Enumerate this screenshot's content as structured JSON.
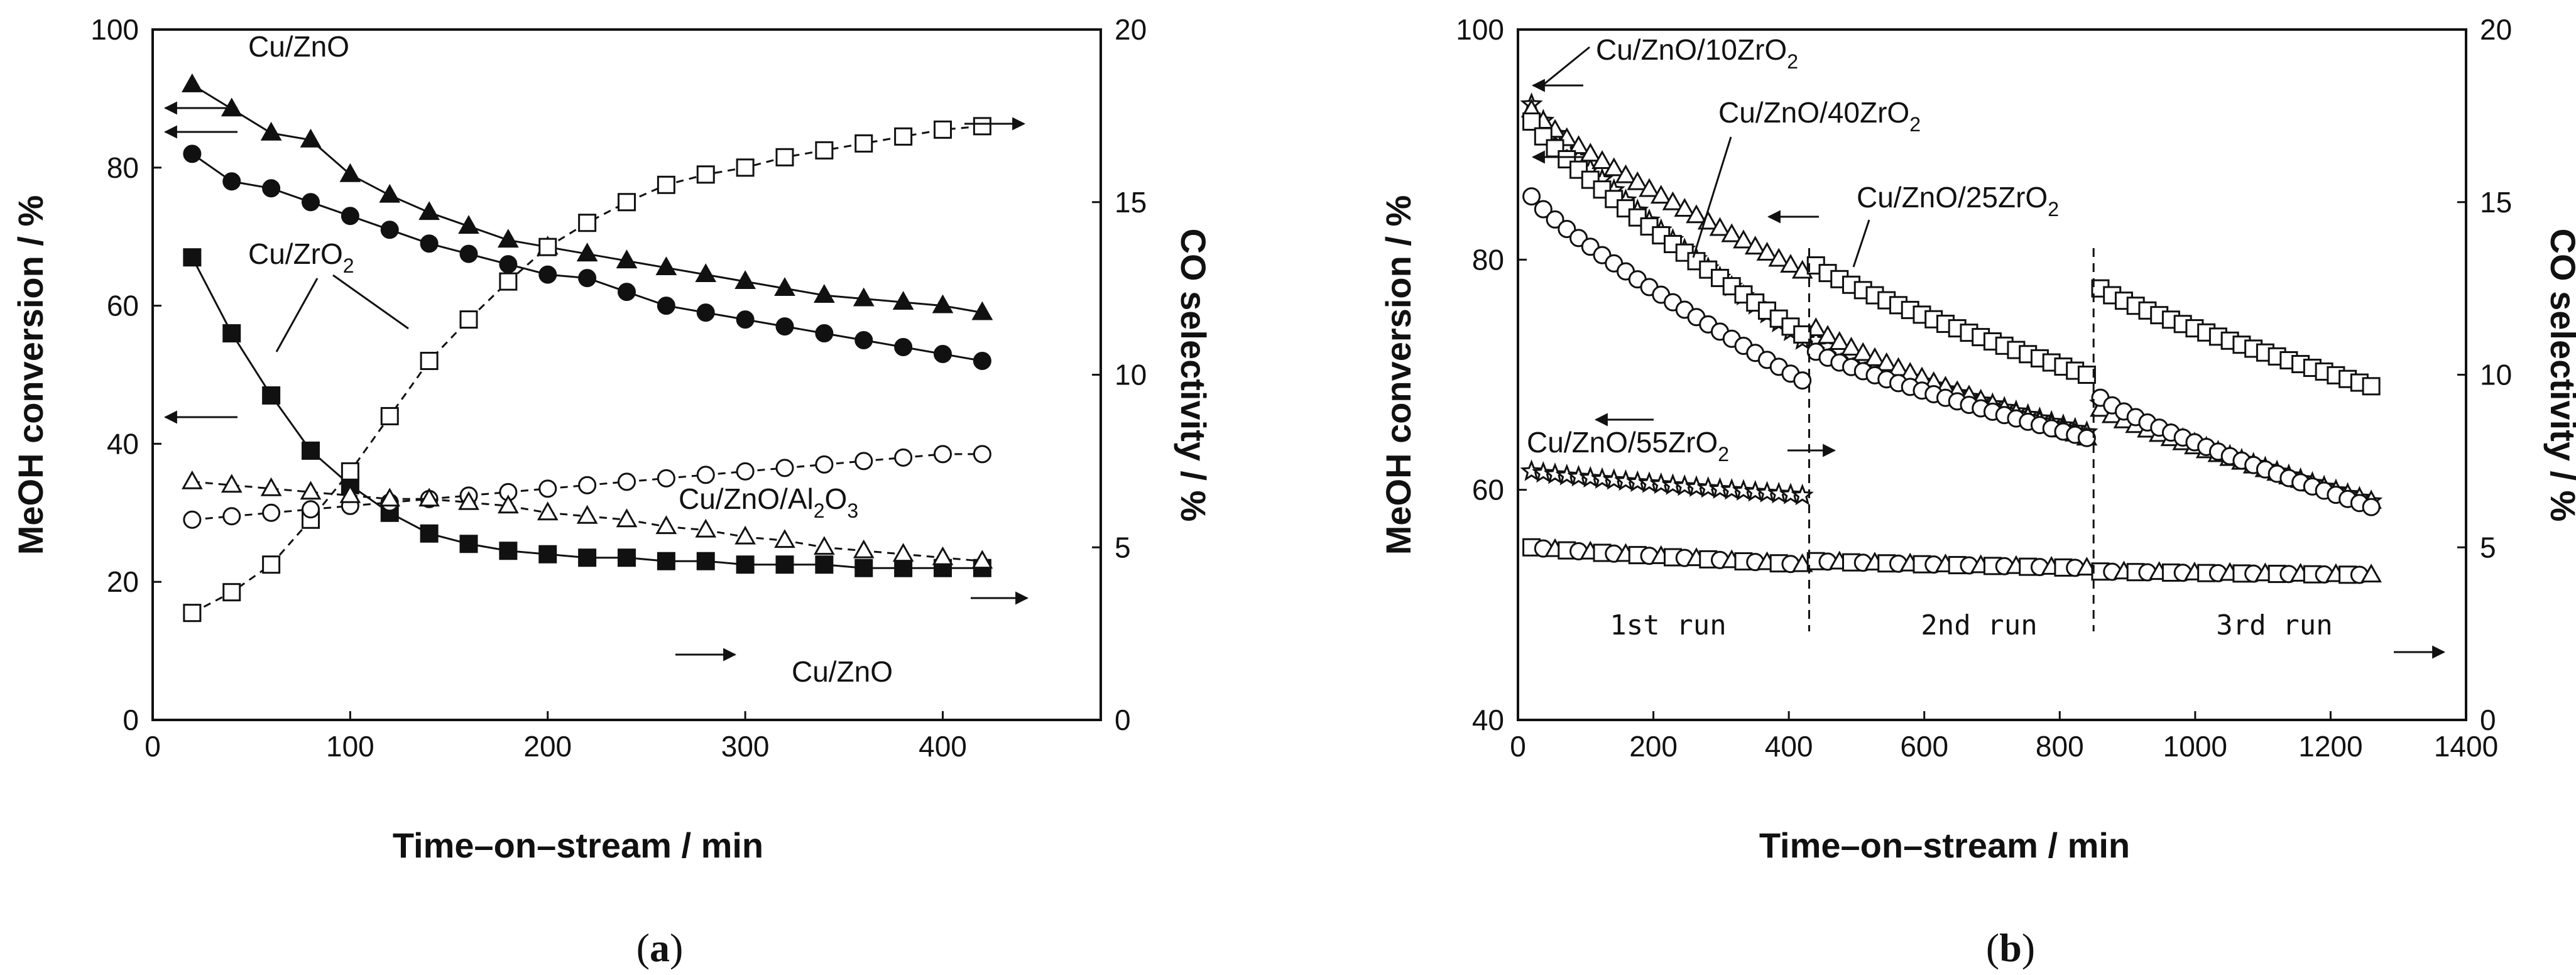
{
  "chart_data": [
    {
      "panel": "a",
      "type": "line",
      "caption_open": "(",
      "caption_letter": "a",
      "caption_close": ")",
      "xlabel": "Time–on–stream  /  min",
      "ylabel": "MeOH conversion  /  %",
      "y2label": "CO selectivity  /  %",
      "xlim": [
        0,
        480
      ],
      "ylim": [
        0,
        100
      ],
      "y2lim": [
        0,
        20
      ],
      "xticks": [
        0,
        100,
        200,
        300,
        400
      ],
      "yticks": [
        0,
        20,
        40,
        60,
        80,
        100
      ],
      "y2ticks": [
        0,
        5,
        10,
        15,
        20
      ],
      "series": [
        {
          "name": "Cu/ZnO MeOH conversion",
          "axis": "left",
          "marker": "triangle-filled",
          "line": "solid",
          "x": [
            20,
            40,
            60,
            80,
            100,
            120,
            140,
            160,
            180,
            200,
            220,
            240,
            260,
            280,
            300,
            320,
            340,
            360,
            380,
            400,
            420
          ],
          "y": [
            92,
            88.5,
            85,
            84,
            79,
            76,
            73.5,
            71.5,
            69.5,
            68.5,
            67.5,
            66.5,
            65.5,
            64.5,
            63.5,
            62.5,
            61.5,
            61,
            60.5,
            60,
            59
          ]
        },
        {
          "name": "Cu/ZnO/Al2O3 MeOH conversion",
          "axis": "left",
          "marker": "circle-filled",
          "line": "solid",
          "x": [
            20,
            40,
            60,
            80,
            100,
            120,
            140,
            160,
            180,
            200,
            220,
            240,
            260,
            280,
            300,
            320,
            340,
            360,
            380,
            400,
            420
          ],
          "y": [
            82,
            78,
            77,
            75,
            73,
            71,
            69,
            67.5,
            66,
            64.5,
            64,
            62,
            60,
            59,
            58,
            57,
            56,
            55,
            54,
            53,
            52
          ]
        },
        {
          "name": "Cu/ZrO2 MeOH conversion",
          "axis": "left",
          "marker": "square-filled",
          "line": "solid",
          "x": [
            20,
            40,
            60,
            80,
            100,
            120,
            140,
            160,
            180,
            200,
            220,
            240,
            260,
            280,
            300,
            320,
            340,
            360,
            380,
            400,
            420
          ],
          "y": [
            67,
            56,
            47,
            39,
            34,
            30,
            27,
            25.5,
            24.5,
            24,
            23.5,
            23.5,
            23,
            23,
            22.5,
            22.5,
            22.5,
            22,
            22,
            22,
            22
          ]
        },
        {
          "name": "Cu/ZrO2 CO selectivity",
          "axis": "right",
          "marker": "square-open",
          "line": "dashed",
          "x": [
            20,
            40,
            60,
            80,
            100,
            120,
            140,
            160,
            180,
            200,
            220,
            240,
            260,
            280,
            300,
            320,
            340,
            360,
            380,
            400,
            420
          ],
          "y": [
            3.1,
            3.7,
            4.5,
            5.8,
            7.2,
            8.8,
            10.4,
            11.6,
            12.7,
            13.7,
            14.4,
            15.0,
            15.5,
            15.8,
            16.0,
            16.3,
            16.5,
            16.7,
            16.9,
            17.1,
            17.2
          ]
        },
        {
          "name": "Cu/ZnO/Al2O3 CO selectivity",
          "axis": "right",
          "marker": "circle-open",
          "line": "dashed",
          "x": [
            20,
            40,
            60,
            80,
            100,
            120,
            140,
            160,
            180,
            200,
            220,
            240,
            260,
            280,
            300,
            320,
            340,
            360,
            380,
            400,
            420
          ],
          "y": [
            5.8,
            5.9,
            6.0,
            6.1,
            6.2,
            6.3,
            6.4,
            6.5,
            6.6,
            6.7,
            6.8,
            6.9,
            7.0,
            7.1,
            7.2,
            7.3,
            7.4,
            7.5,
            7.6,
            7.7,
            7.7
          ]
        },
        {
          "name": "Cu/ZnO CO selectivity",
          "axis": "right",
          "marker": "triangle-open",
          "line": "dashed",
          "x": [
            20,
            40,
            60,
            80,
            100,
            120,
            140,
            160,
            180,
            200,
            220,
            240,
            260,
            280,
            300,
            320,
            340,
            360,
            380,
            400,
            420
          ],
          "y": [
            6.9,
            6.8,
            6.7,
            6.6,
            6.5,
            6.4,
            6.4,
            6.3,
            6.2,
            6.0,
            5.9,
            5.8,
            5.6,
            5.5,
            5.3,
            5.2,
            5.0,
            4.9,
            4.8,
            4.7,
            4.6
          ]
        }
      ],
      "annotations": [
        {
          "label": "Cu/ZnO"
        },
        {
          "label": "Cu/ZrO",
          "sub": "2"
        },
        {
          "label": "Cu/ZnO/Al",
          "sub": "2",
          "mid": "O",
          "sub2": "3"
        },
        {
          "label": "Cu/ZnO"
        }
      ]
    },
    {
      "panel": "b",
      "type": "scatter",
      "caption_open": "(",
      "caption_letter": "b",
      "caption_close": ")",
      "xlabel": "Time–on–stream  /  min",
      "ylabel": "MeOH conversion  /  %",
      "y2label": "CO selectivity  /  %",
      "xlim": [
        0,
        1400
      ],
      "ylim": [
        40,
        100
      ],
      "y2lim": [
        0,
        20
      ],
      "xticks": [
        0,
        200,
        400,
        600,
        800,
        1000,
        1200,
        1400
      ],
      "yticks": [
        40,
        60,
        80,
        100
      ],
      "y2ticks": [
        0,
        5,
        10,
        15,
        20
      ],
      "run_boundaries": [
        430,
        850
      ],
      "run_labels": [
        "1st run",
        "2nd run",
        "3rd run"
      ],
      "series": [
        {
          "name": "Cu/ZnO/10ZrO2 MeOH conversion",
          "axis": "left",
          "marker": "star-open",
          "segments": [
            {
              "x0": 20,
              "x1": 420,
              "y0": 93.5,
              "y1": 73.0
            },
            {
              "x0": 440,
              "x1": 840,
              "y0": 73.0,
              "y1": 65.0
            },
            {
              "x0": 860,
              "x1": 1260,
              "y0": 67.5,
              "y1": 59.0
            }
          ]
        },
        {
          "name": "Cu/ZnO/40ZrO2 MeOH conversion",
          "axis": "left",
          "marker": "triangle-open",
          "segments": [
            {
              "x0": 20,
              "x1": 420,
              "y0": 93.0,
              "y1": 79.0
            },
            {
              "x0": 440,
              "x1": 840,
              "y0": 74.0,
              "y1": 64.5
            },
            {
              "x0": 860,
              "x1": 1260,
              "y0": 67.0,
              "y1": 59.0
            }
          ]
        },
        {
          "name": "Cu/ZnO/25ZrO2 MeOH conversion",
          "axis": "left",
          "marker": "square-open",
          "segments": [
            {
              "x0": 20,
              "x1": 420,
              "y0": 92.0,
              "y1": 73.5
            },
            {
              "x0": 440,
              "x1": 840,
              "y0": 79.5,
              "y1": 70.0
            },
            {
              "x0": 860,
              "x1": 1260,
              "y0": 77.5,
              "y1": 69.0
            }
          ]
        },
        {
          "name": "Cu/ZnO/55ZrO2 MeOH conversion",
          "axis": "left",
          "marker": "circle-open",
          "segments": [
            {
              "x0": 20,
              "x1": 420,
              "y0": 85.5,
              "y1": 69.5
            },
            {
              "x0": 440,
              "x1": 840,
              "y0": 72.0,
              "y1": 64.5
            },
            {
              "x0": 860,
              "x1": 1260,
              "y0": 68.0,
              "y1": 58.5
            }
          ]
        },
        {
          "name": "Cu/ZnO/10ZrO2 CO selectivity",
          "axis": "right",
          "marker": "star-open",
          "segments": [
            {
              "x0": 20,
              "x1": 420,
              "y0": 7.2,
              "y1": 6.5
            }
          ]
        },
        {
          "name": "Cu/ZnO/xZrO2 CO selectivity",
          "axis": "right",
          "marker": "mixed-open",
          "segments": [
            {
              "x0": 20,
              "x1": 420,
              "y0": 5.0,
              "y1": 4.5
            },
            {
              "x0": 440,
              "x1": 840,
              "y0": 4.6,
              "y1": 4.4
            },
            {
              "x0": 860,
              "x1": 1260,
              "y0": 4.3,
              "y1": 4.2
            }
          ]
        }
      ],
      "annotations": [
        {
          "label": "Cu/ZnO/10ZrO",
          "sub": "2"
        },
        {
          "label": "Cu/ZnO/40ZrO",
          "sub": "2"
        },
        {
          "label": "Cu/ZnO/25ZrO",
          "sub": "2"
        },
        {
          "label": "Cu/ZnO/55ZrO",
          "sub": "2"
        }
      ]
    }
  ]
}
